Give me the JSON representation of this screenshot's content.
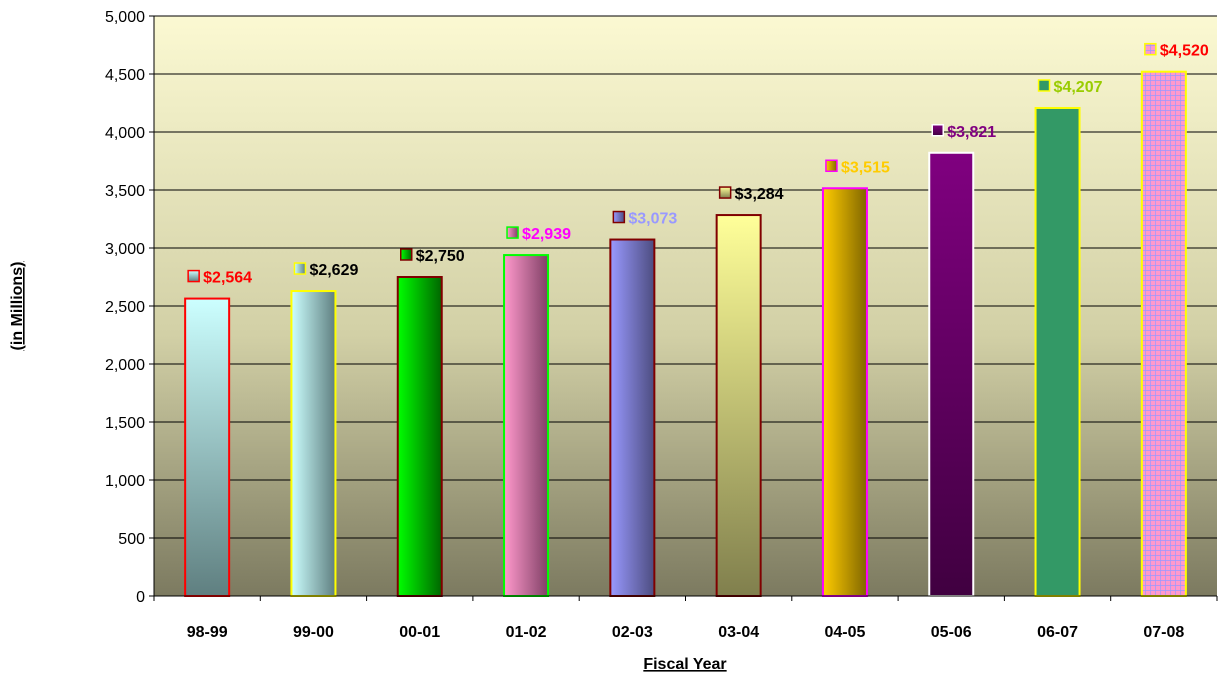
{
  "chart_data": {
    "type": "bar",
    "categories": [
      "98-99",
      "99-00",
      "00-01",
      "01-02",
      "02-03",
      "03-04",
      "04-05",
      "05-06",
      "06-07",
      "07-08"
    ],
    "values": [
      2564,
      2629,
      2750,
      2939,
      3073,
      3284,
      3515,
      3821,
      4207,
      4520
    ],
    "data_labels": [
      "$2,564",
      "$2,629",
      "$2,750",
      "$2,939",
      "$3,073",
      "$3,284",
      "$3,515",
      "$3,821",
      "$4,207",
      "$4,520"
    ],
    "xlabel": "Fiscal Year",
    "ylabel": "(in Millions)",
    "ylim": [
      0,
      5000
    ],
    "yticks": [
      0,
      500,
      1000,
      1500,
      2000,
      2500,
      3000,
      3500,
      4000,
      4500,
      5000
    ],
    "ytick_labels": [
      "0",
      "500",
      "1,000",
      "1,500",
      "2,000",
      "2,500",
      "3,000",
      "3,500",
      "4,000",
      "4,500",
      "5,000"
    ],
    "grid": true,
    "legend": "none",
    "colors": {
      "plot_background_top": "#fbf9d2",
      "plot_background_bottom": "#7c7a60",
      "label_colors": [
        "#ff0000",
        "#000000",
        "#000000",
        "#ff00ff",
        "#9999ff",
        "#000000",
        "#ffcc00",
        "#800080",
        "#99cc00",
        "#ff0000"
      ],
      "bar_borders": [
        "#ff0000",
        "#ffff00",
        "#800000",
        "#00ff00",
        "#800000",
        "#800000",
        "#ff00ff",
        "#ffffff",
        "#ffff00",
        "#ffff00"
      ]
    }
  }
}
